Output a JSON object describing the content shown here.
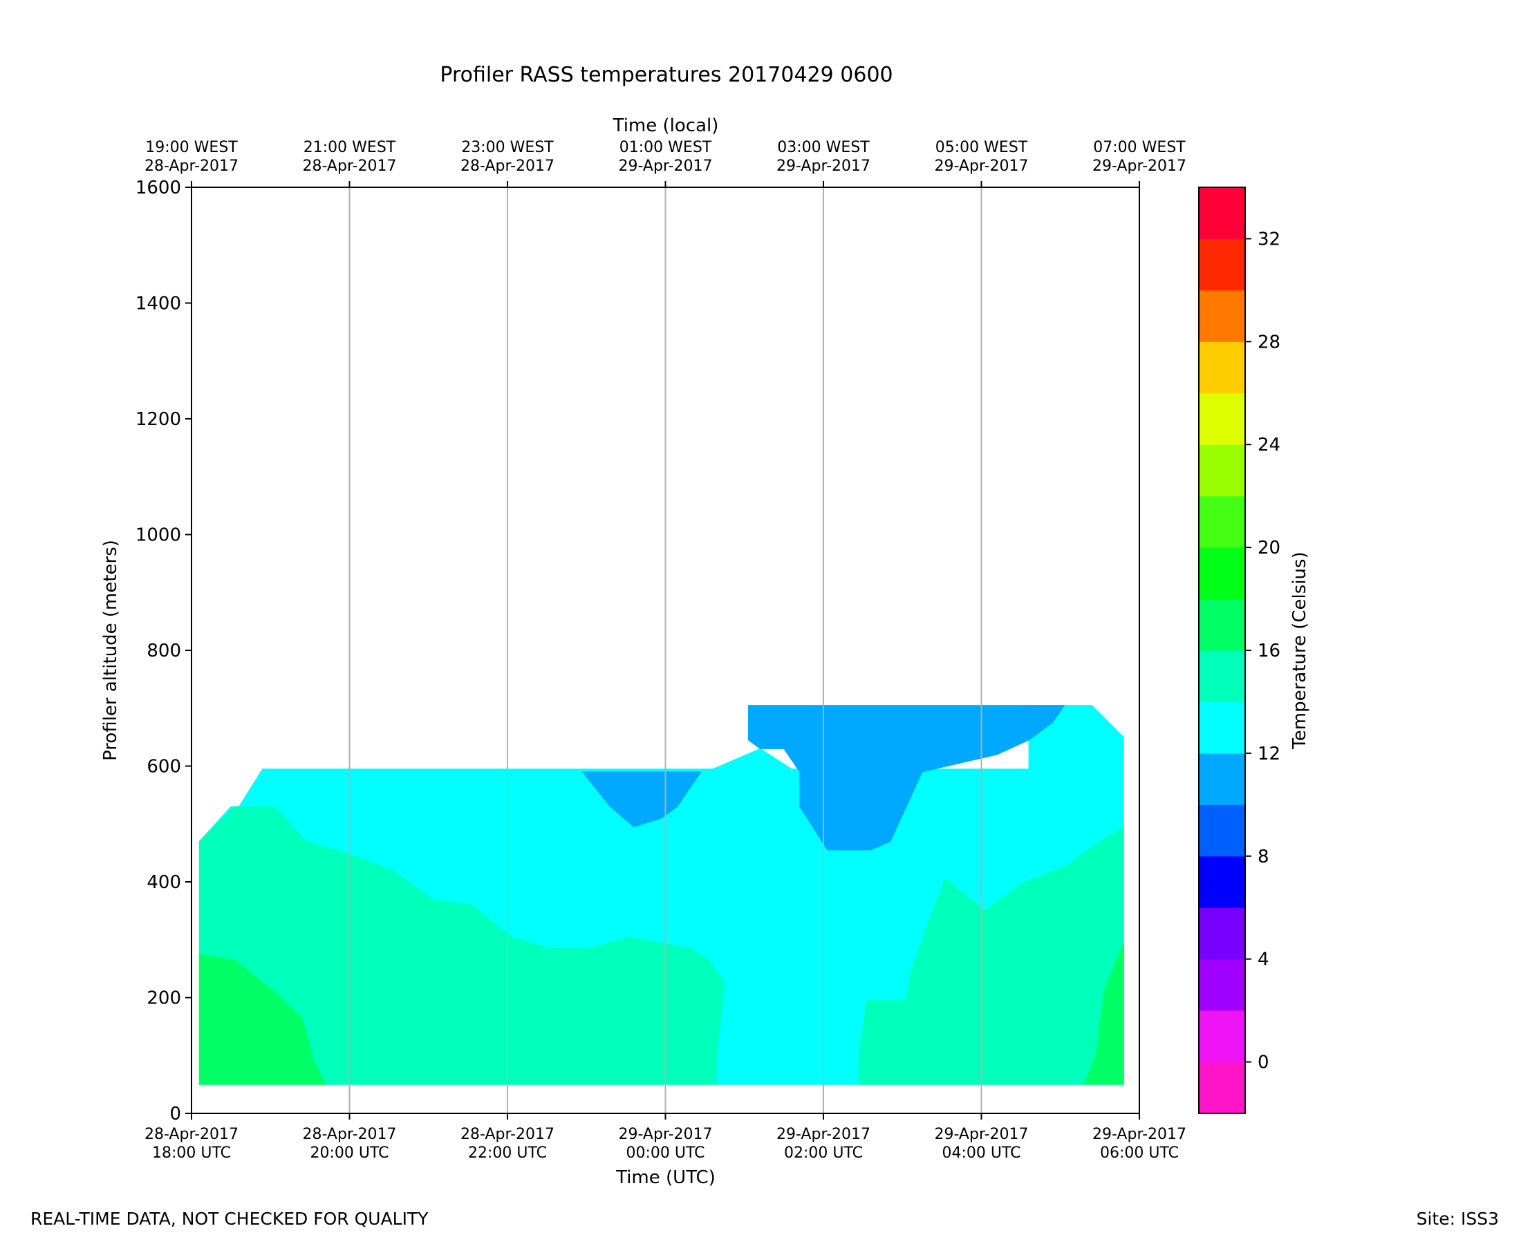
{
  "chart_data": {
    "type": "heatmap",
    "subtype": "filled-contour",
    "title": "Profiler RASS temperatures 20170429 0600",
    "xlabel": "Time (UTC)",
    "xlabel_top": "Time (local)",
    "ylabel": "Profiler altitude (meters)",
    "colorbar_label": "Temperature (Celsius)",
    "xlim": [
      "2017-04-28T18:00Z",
      "2017-04-29T06:00Z"
    ],
    "ylim": [
      0,
      1600
    ],
    "grid": "vertical lines at x ticks",
    "x_ticks": [
      {
        "t": 18,
        "line1": "28-Apr-2017",
        "line2": "18:00 UTC"
      },
      {
        "t": 20,
        "line1": "28-Apr-2017",
        "line2": "20:00 UTC"
      },
      {
        "t": 22,
        "line1": "28-Apr-2017",
        "line2": "22:00 UTC"
      },
      {
        "t": 24,
        "line1": "29-Apr-2017",
        "line2": "00:00 UTC"
      },
      {
        "t": 26,
        "line1": "29-Apr-2017",
        "line2": "02:00 UTC"
      },
      {
        "t": 28,
        "line1": "29-Apr-2017",
        "line2": "04:00 UTC"
      },
      {
        "t": 30,
        "line1": "29-Apr-2017",
        "line2": "06:00 UTC"
      }
    ],
    "x_ticks_top": [
      {
        "t": 18,
        "line1": "19:00 WEST",
        "line2": "28-Apr-2017"
      },
      {
        "t": 20,
        "line1": "21:00 WEST",
        "line2": "28-Apr-2017"
      },
      {
        "t": 22,
        "line1": "23:00 WEST",
        "line2": "28-Apr-2017"
      },
      {
        "t": 24,
        "line1": "01:00 WEST",
        "line2": "29-Apr-2017"
      },
      {
        "t": 26,
        "line1": "03:00 WEST",
        "line2": "29-Apr-2017"
      },
      {
        "t": 28,
        "line1": "05:00 WEST",
        "line2": "29-Apr-2017"
      },
      {
        "t": 30,
        "line1": "07:00 WEST",
        "line2": "29-Apr-2017"
      }
    ],
    "y_ticks": [
      0,
      200,
      400,
      600,
      800,
      1000,
      1200,
      1400,
      1600
    ],
    "colorbar": {
      "range": [
        -2,
        34
      ],
      "ticks": [
        0,
        4,
        8,
        12,
        16,
        20,
        24,
        28,
        32
      ],
      "levels": [
        {
          "from": -2,
          "to": 0,
          "color": "#ff14c8"
        },
        {
          "from": 0,
          "to": 2,
          "color": "#ee14f5"
        },
        {
          "from": 2,
          "to": 4,
          "color": "#a000ff"
        },
        {
          "from": 4,
          "to": 6,
          "color": "#7800ff"
        },
        {
          "from": 6,
          "to": 8,
          "color": "#0000ff"
        },
        {
          "from": 8,
          "to": 10,
          "color": "#0060ff"
        },
        {
          "from": 10,
          "to": 12,
          "color": "#00a8ff"
        },
        {
          "from": 12,
          "to": 14,
          "color": "#00ffff"
        },
        {
          "from": 14,
          "to": 16,
          "color": "#00ffbb"
        },
        {
          "from": 16,
          "to": 18,
          "color": "#00ff66"
        },
        {
          "from": 18,
          "to": 20,
          "color": "#00ff14"
        },
        {
          "from": 20,
          "to": 22,
          "color": "#44ff14"
        },
        {
          "from": 22,
          "to": 24,
          "color": "#99ff00"
        },
        {
          "from": 24,
          "to": 26,
          "color": "#ddff00"
        },
        {
          "from": 26,
          "to": 28,
          "color": "#ffcc00"
        },
        {
          "from": 28,
          "to": 30,
          "color": "#ff7800"
        },
        {
          "from": 30,
          "to": 32,
          "color": "#ff2800"
        },
        {
          "from": 32,
          "to": 34,
          "color": "#ff0038"
        }
      ]
    },
    "regions": [
      {
        "name": "region-12-14C",
        "level": "12-14",
        "color": "#00ffff",
        "points": [
          [
            18.1,
            470
          ],
          [
            18.1,
            50
          ],
          [
            29.8,
            50
          ],
          [
            29.8,
            650
          ],
          [
            29.4,
            705
          ],
          [
            28.6,
            705
          ],
          [
            28.6,
            595
          ],
          [
            25.6,
            595
          ],
          [
            25.2,
            630
          ],
          [
            24.6,
            595
          ],
          [
            18.9,
            595
          ],
          [
            18.6,
            530
          ],
          [
            18.5,
            530
          ]
        ]
      },
      {
        "name": "region-10-12C-upper",
        "level": "10-12",
        "color": "#00a8ff",
        "points": [
          [
            25.05,
            645
          ],
          [
            25.05,
            705
          ],
          [
            29.05,
            705
          ],
          [
            28.9,
            675
          ],
          [
            28.6,
            645
          ],
          [
            28.2,
            620
          ],
          [
            27.25,
            590
          ],
          [
            27.05,
            530
          ],
          [
            26.85,
            470
          ],
          [
            26.6,
            455
          ],
          [
            26.05,
            455
          ],
          [
            25.7,
            530
          ],
          [
            25.7,
            590
          ],
          [
            25.5,
            630
          ],
          [
            25.2,
            630
          ]
        ]
      },
      {
        "name": "region-10-12C-lower",
        "level": "10-12",
        "color": "#00a8ff",
        "points": [
          [
            22.95,
            590
          ],
          [
            24.45,
            590
          ],
          [
            24.15,
            530
          ],
          [
            23.95,
            510
          ],
          [
            23.6,
            495
          ],
          [
            23.3,
            530
          ]
        ]
      },
      {
        "name": "region-14-16C-left",
        "level": "14-16",
        "color": "#00ffbb",
        "points": [
          [
            18.1,
            470
          ],
          [
            18.55,
            530
          ],
          [
            19.05,
            530
          ],
          [
            19.45,
            470
          ],
          [
            19.95,
            450
          ],
          [
            20.55,
            420
          ],
          [
            21.05,
            370
          ],
          [
            21.55,
            360
          ],
          [
            22.05,
            305
          ],
          [
            22.55,
            285
          ],
          [
            23.05,
            285
          ],
          [
            23.55,
            305
          ],
          [
            24.3,
            285
          ],
          [
            24.55,
            265
          ],
          [
            24.75,
            225
          ],
          [
            24.65,
            100
          ],
          [
            24.65,
            50
          ],
          [
            18.1,
            50
          ]
        ]
      },
      {
        "name": "region-14-16C-right",
        "level": "14-16",
        "color": "#00ffbb",
        "points": [
          [
            26.45,
            50
          ],
          [
            26.45,
            100
          ],
          [
            26.55,
            195
          ],
          [
            27.05,
            195
          ],
          [
            27.1,
            240
          ],
          [
            27.3,
            320
          ],
          [
            27.55,
            405
          ],
          [
            28.05,
            350
          ],
          [
            28.55,
            400
          ],
          [
            29.05,
            425
          ],
          [
            29.45,
            465
          ],
          [
            29.8,
            495
          ],
          [
            29.8,
            50
          ]
        ]
      },
      {
        "name": "region-16-18C-left",
        "level": "16-18",
        "color": "#00ff66",
        "points": [
          [
            18.1,
            275
          ],
          [
            18.55,
            265
          ],
          [
            19.05,
            210
          ],
          [
            19.4,
            165
          ],
          [
            19.55,
            90
          ],
          [
            19.7,
            50
          ],
          [
            18.1,
            50
          ]
        ]
      },
      {
        "name": "region-16-18C-right",
        "level": "16-18",
        "color": "#00ff66",
        "points": [
          [
            29.3,
            50
          ],
          [
            29.45,
            100
          ],
          [
            29.55,
            210
          ],
          [
            29.8,
            295
          ],
          [
            29.8,
            50
          ]
        ]
      }
    ]
  },
  "footer": {
    "left_text": "REAL-TIME DATA, NOT CHECKED FOR QUALITY",
    "right_text": "Site: ISS3"
  }
}
